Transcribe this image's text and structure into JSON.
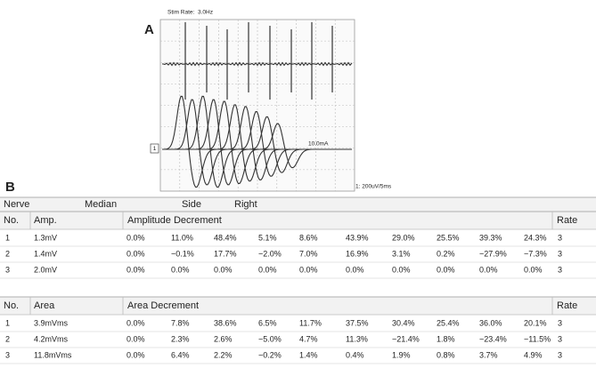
{
  "panel_a": {
    "label": "A",
    "stim_rate_label": "Stim Rate:",
    "stim_rate": "3.0Hz",
    "channel": "1",
    "intensity": "10.0mA",
    "scale": "1: 200uV/5ms"
  },
  "panel_b": {
    "label": "B",
    "nerve_row": [
      "Nerve",
      "Median",
      "Side",
      "Right"
    ],
    "tables": [
      {
        "header": [
          "No.",
          "Amp.",
          "Amplitude Decrement",
          "Rate"
        ],
        "rows": [
          [
            "1",
            "1.3mV",
            "0.0%",
            "11.0%",
            "48.4%",
            "5.1%",
            "8.6%",
            "43.9%",
            "29.0%",
            "25.5%",
            "39.3%",
            "24.3%",
            "3"
          ],
          [
            "2",
            "1.4mV",
            "0.0%",
            "−0.1%",
            "17.7%",
            "−2.0%",
            "7.0%",
            "16.9%",
            "3.1%",
            "0.2%",
            "−27.9%",
            "−7.3%",
            "3"
          ],
          [
            "3",
            "2.0mV",
            "0.0%",
            "0.0%",
            "0.0%",
            "0.0%",
            "0.0%",
            "0.0%",
            "0.0%",
            "0.0%",
            "0.0%",
            "0.0%",
            "3"
          ]
        ]
      },
      {
        "header": [
          "No.",
          "Area",
          "Area Decrement",
          "Rate"
        ],
        "rows": [
          [
            "1",
            "3.9mVms",
            "0.0%",
            "7.8%",
            "38.6%",
            "6.5%",
            "11.7%",
            "37.5%",
            "30.4%",
            "25.4%",
            "36.0%",
            "20.1%",
            "3"
          ],
          [
            "2",
            "4.2mVms",
            "0.0%",
            "2.3%",
            "2.6%",
            "−5.0%",
            "4.7%",
            "11.3%",
            "−21.4%",
            "1.8%",
            "−23.4%",
            "−11.5%",
            "3"
          ],
          [
            "3",
            "11.8mVms",
            "0.0%",
            "6.4%",
            "2.2%",
            "−0.2%",
            "1.4%",
            "0.4%",
            "1.9%",
            "0.8%",
            "3.7%",
            "4.9%",
            "3"
          ]
        ]
      }
    ]
  }
}
